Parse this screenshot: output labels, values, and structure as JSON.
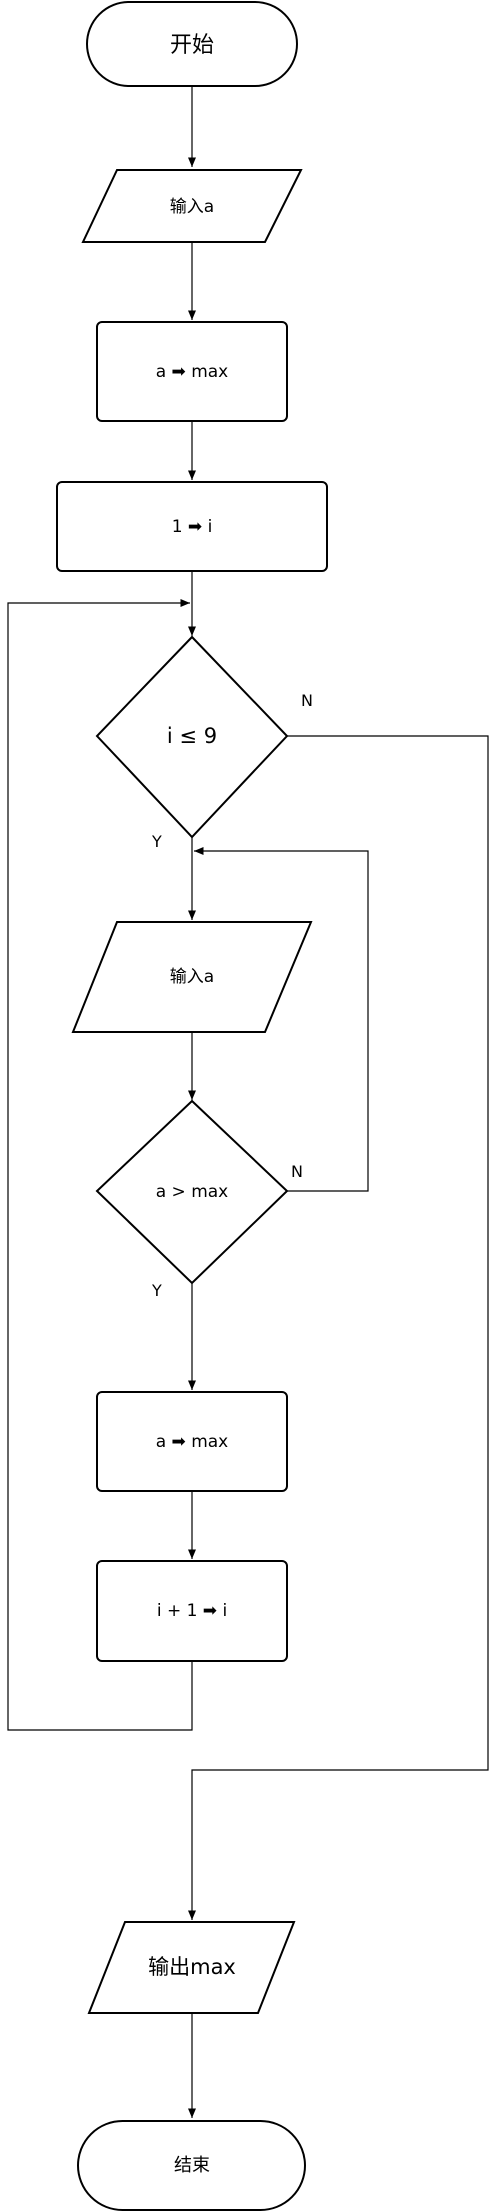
{
  "nodes": {
    "start": "开始",
    "input_a_1": "输入a",
    "assign_max_1": "a ➡ max",
    "init_i": "1 ➡ i",
    "cond_i": "i ≤ 9",
    "input_a_2": "输入a",
    "cond_a": "a > max",
    "assign_max_2": "a ➡ max",
    "incr_i": "i + 1 ➡ i",
    "output": "输出max",
    "end": "结束"
  },
  "edge_labels": {
    "cond_i_no": "N",
    "cond_i_yes": "Y",
    "cond_a_no": "N",
    "cond_a_yes": "Y"
  },
  "colors": {
    "stroke": "#000000",
    "fill": "#ffffff"
  }
}
